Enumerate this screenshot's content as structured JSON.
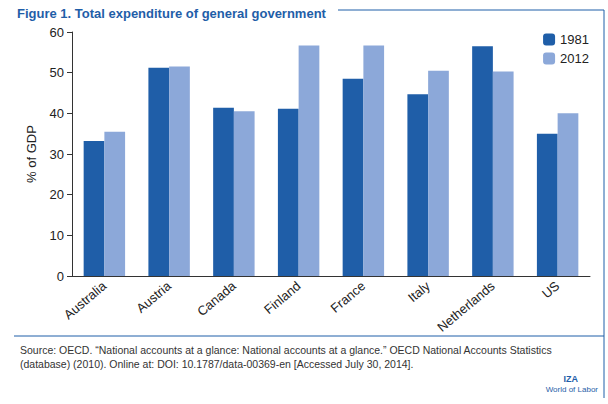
{
  "chart_data": {
    "type": "bar",
    "title": "Figure 1. Total expenditure of general government",
    "y_label": "% of GDP",
    "categories": [
      "Australia",
      "Austria",
      "Canada",
      "Finland",
      "France",
      "Italy",
      "Netherlands",
      "US"
    ],
    "series": [
      {
        "name": "1981",
        "color": "#1f5ea8",
        "values": [
          33.2,
          51.2,
          41.4,
          41.1,
          48.5,
          44.7,
          56.5,
          35.0
        ]
      },
      {
        "name": "2012",
        "color": "#8ca8d9",
        "values": [
          35.5,
          51.5,
          40.5,
          56.7,
          56.7,
          50.5,
          50.3,
          40.0
        ]
      }
    ],
    "ylim": [
      0,
      60
    ],
    "yticks": [
      0,
      10,
      20,
      30,
      40,
      50,
      60
    ],
    "grid": false,
    "legend": "upper right",
    "annotations": [
      "Source: OECD. “National accounts at a glance: National accounts at a glance.” OECD National Accounts Statistics (database) (2010). Online at: DOI: 10.1787/data-00369-en [Accessed July 30, 2014].",
      "IZA",
      "World of Labor"
    ]
  }
}
